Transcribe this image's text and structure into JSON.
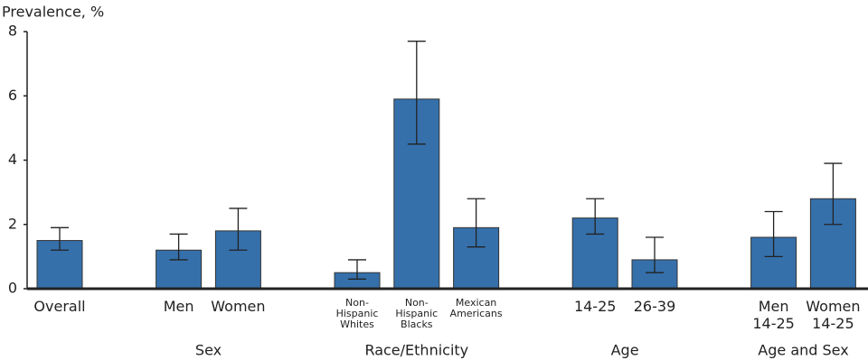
{
  "chart_data": {
    "type": "bar",
    "y_label": "Prevalence, %",
    "categories": [
      [
        "Overall"
      ],
      [
        "Men"
      ],
      [
        "Women"
      ],
      [
        "Non-",
        "Hispanic",
        "Whites"
      ],
      [
        "Non-",
        "Hispanic",
        "Blacks"
      ],
      [
        "Mexican",
        "Americans"
      ],
      [
        "14-25"
      ],
      [
        "26-39"
      ],
      [
        "Men",
        "14-25"
      ],
      [
        "Women",
        "14-25"
      ]
    ],
    "groups": [
      {
        "label": null,
        "count": 1
      },
      {
        "label": "Sex",
        "count": 2
      },
      {
        "label": "Race/Ethnicity",
        "count": 3
      },
      {
        "label": "Age",
        "count": 2
      },
      {
        "label": "Age and Sex",
        "count": 2
      }
    ],
    "values": [
      1.5,
      1.2,
      1.8,
      0.5,
      5.9,
      1.9,
      2.2,
      0.9,
      1.6,
      2.8
    ],
    "ci_low": [
      1.2,
      0.9,
      1.2,
      0.3,
      4.5,
      1.3,
      1.7,
      0.5,
      1.0,
      2.0
    ],
    "ci_high": [
      1.9,
      1.7,
      2.5,
      0.9,
      7.7,
      2.8,
      2.8,
      1.6,
      2.4,
      3.9
    ],
    "color": "#3570ab",
    "ylim": [
      0,
      8
    ],
    "yticks": [
      0,
      2,
      4,
      6,
      8
    ]
  }
}
